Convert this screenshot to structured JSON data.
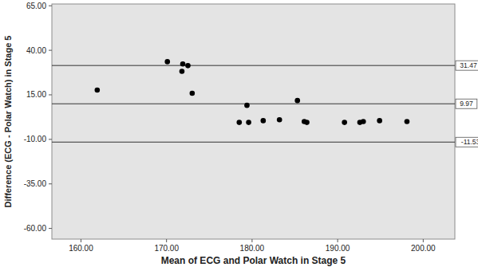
{
  "chart_data": {
    "type": "scatter",
    "x_label": "Mean of ECG and Polar Watch in Stage 5",
    "y_label": "Difference (ECG - Polar Watch) in Stage 5",
    "x": [
      161.9,
      170.1,
      171.9,
      171.8,
      172.5,
      173.0,
      178.5,
      179.4,
      179.6,
      181.3,
      183.2,
      185.3,
      186.1,
      186.4,
      190.8,
      192.6,
      193.0,
      194.9,
      198.1
    ],
    "values": [
      17.7,
      33.6,
      32.3,
      28.2,
      31.4,
      15.9,
      -0.5,
      9.1,
      -0.5,
      0.5,
      1.0,
      11.8,
      0.0,
      -0.5,
      -0.5,
      -0.5,
      0.0,
      0.5,
      0.0
    ],
    "color": "#000000",
    "marker": "circle",
    "reference_lines": [
      31.47,
      9.97,
      -11.53
    ],
    "xlim": [
      156.6,
      203.7
    ],
    "ylim": [
      -66,
      66
    ],
    "xticks": [
      {
        "value": 160,
        "label": "160.00"
      },
      {
        "value": 170,
        "label": "170.00"
      },
      {
        "value": 180,
        "label": "180.00"
      },
      {
        "value": 190,
        "label": "190.00"
      },
      {
        "value": 200,
        "label": "200.00"
      }
    ],
    "yticks": [
      {
        "value": 65,
        "label": "65.00"
      },
      {
        "value": 40,
        "label": "40.00"
      },
      {
        "value": 15,
        "label": "15.00"
      },
      {
        "value": -10,
        "label": "-10.00"
      },
      {
        "value": -35,
        "label": "-35.00"
      },
      {
        "value": -60,
        "label": "-60.00"
      }
    ],
    "grid": false
  }
}
